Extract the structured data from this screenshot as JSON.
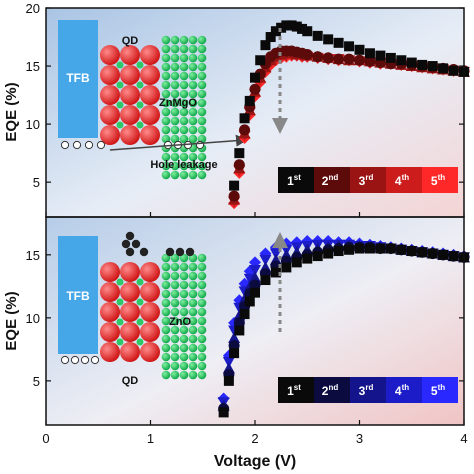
{
  "chart_data": [
    {
      "type": "scatter",
      "panel": "top",
      "title": "",
      "xlabel": "Voltage (V)",
      "ylabel": "EQE (%)",
      "xlim": [
        0,
        4
      ],
      "ylim": [
        2,
        20
      ],
      "yticks": [
        5,
        10,
        15,
        20
      ],
      "grid": false,
      "legend_placement": "right-middle",
      "schematic_labels": {
        "tfb": "TFB",
        "qd": "QD",
        "etl": "ZnMgO",
        "note": "Hole leakage"
      },
      "series": [
        {
          "name": "1st",
          "ordinal": "1",
          "suffix": "st",
          "marker": "square",
          "color": "#0a0a0a",
          "x": [
            1.8,
            1.85,
            1.9,
            1.95,
            2.0,
            2.05,
            2.1,
            2.15,
            2.2,
            2.25,
            2.3,
            2.35,
            2.4,
            2.45,
            2.5,
            2.6,
            2.7,
            2.8,
            2.9,
            3.0,
            3.1,
            3.2,
            3.3,
            3.4,
            3.5,
            3.6,
            3.7,
            3.8,
            3.9,
            4.0
          ],
          "y": [
            4.7,
            7.5,
            10.5,
            12.0,
            14.0,
            15.5,
            16.8,
            17.5,
            18.0,
            18.3,
            18.5,
            18.5,
            18.4,
            18.2,
            18.0,
            17.6,
            17.3,
            17.0,
            16.7,
            16.4,
            16.1,
            15.9,
            15.7,
            15.5,
            15.3,
            15.1,
            15.0,
            14.8,
            14.6,
            14.5
          ]
        },
        {
          "name": "2nd",
          "ordinal": "2",
          "suffix": "nd",
          "marker": "circle",
          "color": "#5c0a0a",
          "x": [
            1.8,
            1.85,
            1.9,
            1.95,
            2.0,
            2.05,
            2.1,
            2.15,
            2.2,
            2.25,
            2.3,
            2.35,
            2.4,
            2.45,
            2.5,
            2.6,
            2.7,
            2.8,
            2.9,
            3.0,
            3.1,
            3.2,
            3.3,
            3.4,
            3.5,
            3.6,
            3.7,
            3.8,
            3.9,
            4.0
          ],
          "y": [
            3.8,
            6.5,
            9.5,
            11.5,
            13.0,
            14.3,
            15.2,
            15.8,
            16.1,
            16.3,
            16.3,
            16.3,
            16.2,
            16.1,
            16.0,
            15.8,
            15.7,
            15.6,
            15.6,
            15.5,
            15.4,
            15.3,
            15.2,
            15.2,
            15.1,
            15.0,
            14.9,
            14.8,
            14.7,
            14.6
          ]
        },
        {
          "name": "3rd",
          "ordinal": "3",
          "suffix": "rd",
          "marker": "triangle",
          "color": "#9a1414",
          "x": [
            1.8,
            1.85,
            1.9,
            1.95,
            2.0,
            2.05,
            2.1,
            2.15,
            2.2,
            2.25,
            2.3,
            2.35,
            2.4,
            2.45,
            2.5,
            2.6,
            2.7,
            2.8,
            2.9,
            3.0,
            3.1,
            3.2,
            3.3,
            3.4,
            3.5,
            3.6,
            3.7,
            3.8,
            3.9,
            4.0
          ],
          "y": [
            3.5,
            6.2,
            9.2,
            11.2,
            12.8,
            14.0,
            14.9,
            15.5,
            15.8,
            16.0,
            16.1,
            16.1,
            16.0,
            16.0,
            15.9,
            15.8,
            15.7,
            15.6,
            15.5,
            15.5,
            15.4,
            15.3,
            15.2,
            15.1,
            15.0,
            14.9,
            14.8,
            14.7,
            14.6,
            14.5
          ]
        },
        {
          "name": "4th",
          "ordinal": "4",
          "suffix": "th",
          "marker": "triangle-down",
          "color": "#cc1c1c",
          "x": [
            1.8,
            1.85,
            1.9,
            1.95,
            2.0,
            2.05,
            2.1,
            2.15,
            2.2,
            2.25,
            2.3,
            2.35,
            2.4,
            2.45,
            2.5,
            2.6,
            2.7,
            2.8,
            2.9,
            3.0,
            3.1,
            3.2,
            3.3,
            3.4,
            3.5,
            3.6,
            3.7,
            3.8,
            3.9,
            4.0
          ],
          "y": [
            3.3,
            6.0,
            9.0,
            11.0,
            12.6,
            13.8,
            14.7,
            15.3,
            15.6,
            15.8,
            15.9,
            16.0,
            15.9,
            15.9,
            15.8,
            15.7,
            15.6,
            15.6,
            15.5,
            15.4,
            15.3,
            15.3,
            15.2,
            15.1,
            15.0,
            14.9,
            14.8,
            14.7,
            14.6,
            14.5
          ]
        },
        {
          "name": "5th",
          "ordinal": "5",
          "suffix": "th",
          "marker": "diamond",
          "color": "#ff2828",
          "x": [
            1.8,
            1.85,
            1.9,
            1.95,
            2.0,
            2.05,
            2.1,
            2.15,
            2.2,
            2.25,
            2.3,
            2.35,
            2.4,
            2.45,
            2.5,
            2.6,
            2.7,
            2.8,
            2.9,
            3.0,
            3.1,
            3.2,
            3.3,
            3.4,
            3.5,
            3.6,
            3.7,
            3.8,
            3.9,
            4.0
          ],
          "y": [
            3.2,
            5.8,
            8.8,
            10.8,
            12.4,
            13.6,
            14.5,
            15.1,
            15.5,
            15.7,
            15.8,
            15.9,
            15.9,
            15.8,
            15.8,
            15.7,
            15.6,
            15.5,
            15.5,
            15.4,
            15.3,
            15.2,
            15.2,
            15.1,
            15.0,
            14.9,
            14.8,
            14.7,
            14.6,
            14.5
          ]
        }
      ]
    },
    {
      "type": "scatter",
      "panel": "bottom",
      "title": "",
      "xlabel": "Voltage (V)",
      "ylabel": "EQE (%)",
      "xlim": [
        0,
        4
      ],
      "ylim": [
        1.5,
        18
      ],
      "xticks": [
        0,
        1,
        2,
        3,
        4
      ],
      "yticks": [
        5,
        10,
        15
      ],
      "grid": false,
      "legend_placement": "bottom-right",
      "schematic_labels": {
        "tfb": "TFB",
        "qd": "QD",
        "etl": "ZnO"
      },
      "series": [
        {
          "name": "1st",
          "ordinal": "1",
          "suffix": "st",
          "marker": "square",
          "color": "#0a0a0a",
          "x": [
            1.7,
            1.75,
            1.8,
            1.85,
            1.9,
            1.95,
            2.0,
            2.1,
            2.2,
            2.3,
            2.4,
            2.5,
            2.6,
            2.7,
            2.8,
            2.9,
            3.0,
            3.1,
            3.2,
            3.3,
            3.4,
            3.5,
            3.6,
            3.7,
            3.8,
            3.9,
            4.0
          ],
          "y": [
            2.5,
            5.0,
            7.2,
            9.0,
            10.3,
            11.3,
            12.0,
            13.0,
            13.6,
            14.0,
            14.4,
            14.7,
            14.9,
            15.1,
            15.3,
            15.4,
            15.5,
            15.5,
            15.5,
            15.5,
            15.4,
            15.3,
            15.2,
            15.1,
            15.0,
            14.9,
            14.8
          ]
        },
        {
          "name": "2nd",
          "ordinal": "2",
          "suffix": "nd",
          "marker": "circle",
          "color": "#0b0b40",
          "x": [
            1.7,
            1.75,
            1.8,
            1.85,
            1.9,
            1.95,
            2.0,
            2.1,
            2.2,
            2.3,
            2.4,
            2.5,
            2.6,
            2.7,
            2.8,
            2.9,
            3.0,
            3.1,
            3.2,
            3.3,
            3.4,
            3.5,
            3.6,
            3.7,
            3.8,
            3.9,
            4.0
          ],
          "y": [
            2.8,
            5.5,
            7.8,
            9.6,
            10.9,
            11.9,
            12.6,
            13.5,
            14.1,
            14.5,
            14.8,
            15.0,
            15.2,
            15.4,
            15.5,
            15.6,
            15.6,
            15.6,
            15.5,
            15.5,
            15.4,
            15.3,
            15.2,
            15.1,
            15.0,
            14.9,
            14.8
          ]
        },
        {
          "name": "3rd",
          "ordinal": "3",
          "suffix": "rd",
          "marker": "triangle",
          "color": "#14148c",
          "x": [
            1.7,
            1.75,
            1.8,
            1.85,
            1.9,
            1.95,
            2.0,
            2.1,
            2.2,
            2.3,
            2.4,
            2.5,
            2.6,
            2.7,
            2.8,
            2.9,
            3.0,
            3.1,
            3.2,
            3.3,
            3.4,
            3.5,
            3.6,
            3.7,
            3.8,
            3.9,
            4.0
          ],
          "y": [
            3.0,
            6.0,
            8.4,
            10.2,
            11.5,
            12.5,
            13.2,
            14.0,
            14.6,
            15.0,
            15.2,
            15.4,
            15.5,
            15.6,
            15.7,
            15.7,
            15.7,
            15.6,
            15.6,
            15.5,
            15.4,
            15.3,
            15.2,
            15.1,
            15.0,
            14.9,
            14.8
          ]
        },
        {
          "name": "4th",
          "ordinal": "4",
          "suffix": "th",
          "marker": "triangle-down",
          "color": "#1c1cc8",
          "x": [
            1.7,
            1.75,
            1.8,
            1.85,
            1.9,
            1.95,
            2.0,
            2.1,
            2.2,
            2.3,
            2.4,
            2.5,
            2.6,
            2.7,
            2.8,
            2.9,
            3.0,
            3.1,
            3.2,
            3.3,
            3.4,
            3.5,
            3.6,
            3.7,
            3.8,
            3.9,
            4.0
          ],
          "y": [
            3.3,
            6.5,
            9.0,
            10.8,
            12.1,
            13.1,
            13.8,
            14.6,
            15.1,
            15.4,
            15.6,
            15.7,
            15.8,
            15.8,
            15.8,
            15.8,
            15.7,
            15.7,
            15.6,
            15.5,
            15.4,
            15.3,
            15.2,
            15.1,
            15.0,
            14.9,
            14.8
          ]
        },
        {
          "name": "5th",
          "ordinal": "5",
          "suffix": "th",
          "marker": "diamond",
          "color": "#2828ff",
          "x": [
            1.7,
            1.75,
            1.8,
            1.85,
            1.9,
            1.95,
            2.0,
            2.1,
            2.2,
            2.3,
            2.4,
            2.5,
            2.6,
            2.7,
            2.8,
            2.9,
            3.0,
            3.1,
            3.2,
            3.3,
            3.4,
            3.5,
            3.6,
            3.7,
            3.8,
            3.9,
            4.0
          ],
          "y": [
            3.6,
            7.0,
            9.6,
            11.4,
            12.7,
            13.7,
            14.4,
            15.1,
            15.6,
            15.9,
            16.0,
            16.1,
            16.1,
            16.1,
            16.0,
            16.0,
            15.9,
            15.8,
            15.7,
            15.6,
            15.5,
            15.4,
            15.3,
            15.2,
            15.1,
            15.0,
            14.9
          ]
        }
      ]
    }
  ]
}
